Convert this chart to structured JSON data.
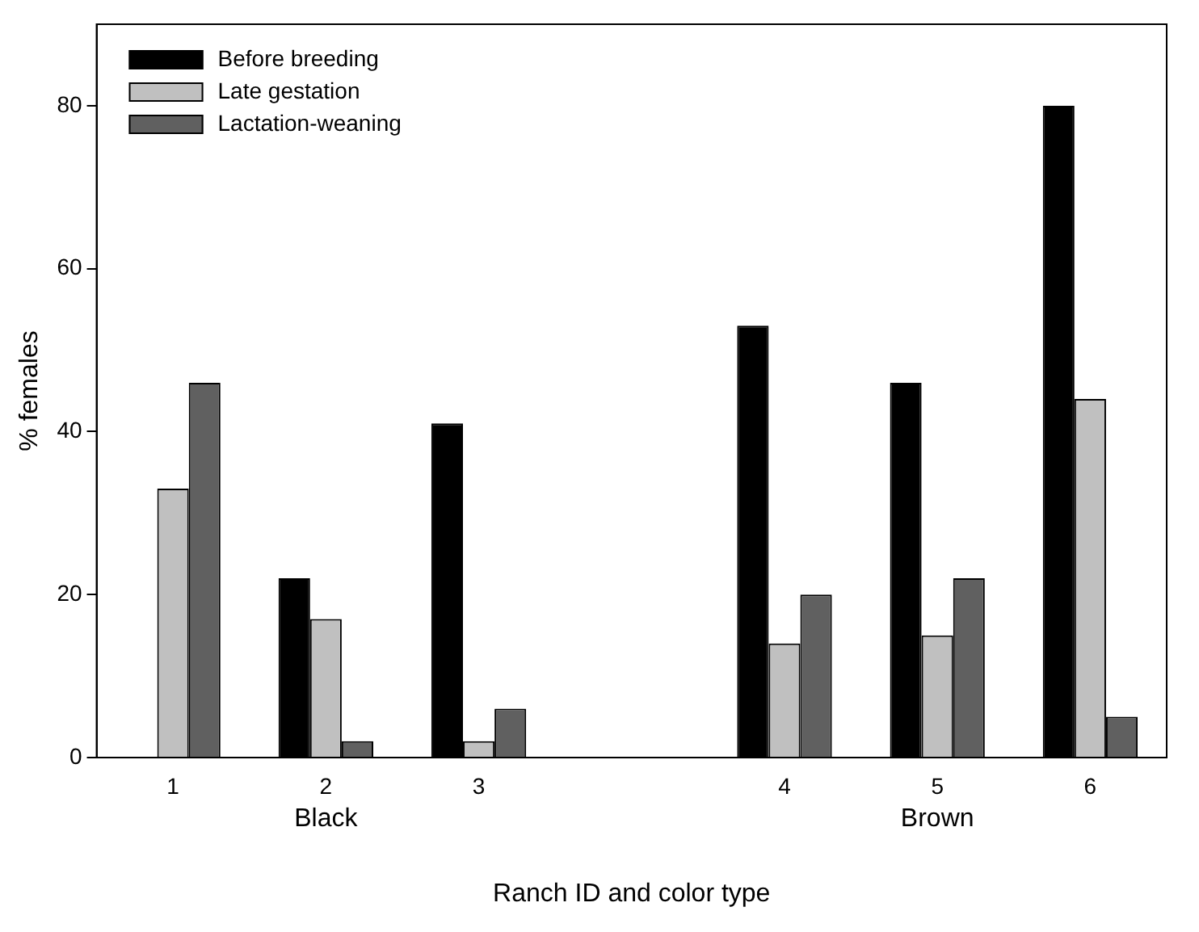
{
  "chart_data": {
    "type": "bar",
    "xlabel": "Ranch ID and color type",
    "ylabel": "% females",
    "categories": [
      "1",
      "2",
      "3",
      null,
      "4",
      "5",
      "6"
    ],
    "series": [
      {
        "name": "Before breeding",
        "color": "#000000",
        "values": [
          0,
          22,
          41,
          null,
          53,
          46,
          80
        ]
      },
      {
        "name": "Late gestation",
        "color": "#c0c0c0",
        "values": [
          33,
          17,
          2,
          null,
          14,
          15,
          44
        ]
      },
      {
        "name": "Lactation-weaning",
        "color": "#606060",
        "values": [
          46,
          2,
          6,
          null,
          20,
          22,
          5
        ]
      }
    ],
    "ylim": [
      0,
      90
    ],
    "yticks": [
      0,
      20,
      40,
      60,
      80
    ],
    "grid": false,
    "legend": "top left",
    "annotations": [
      "Black",
      "Brown"
    ]
  }
}
